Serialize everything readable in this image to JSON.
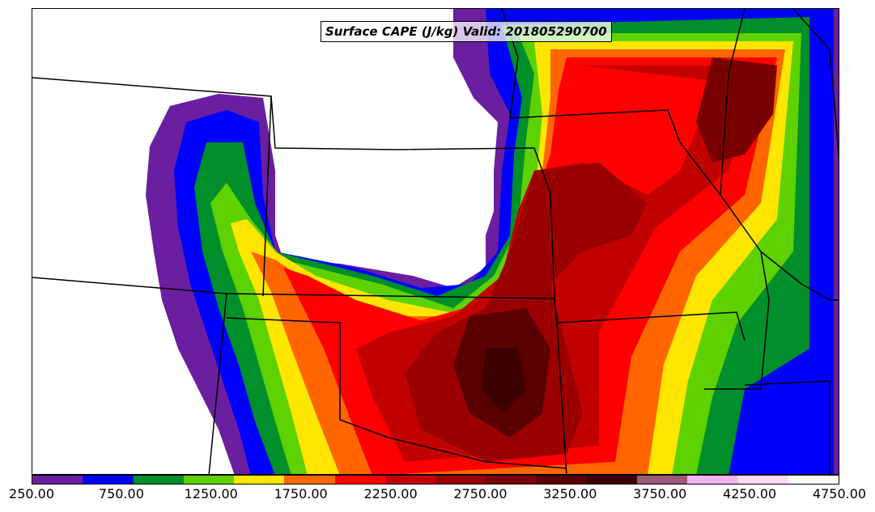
{
  "title": "Surface CAPE (J/kg) Valid: 201805290700",
  "colorbar": {
    "colors": [
      "#6a1fa0",
      "#0000ff",
      "#008f2a",
      "#5ed100",
      "#ffe600",
      "#ff6600",
      "#ff0000",
      "#c30000",
      "#9a0000",
      "#7a0000",
      "#5a0000",
      "#3c0000",
      "#9b5a78",
      "#f0b4f0",
      "#ffdcff",
      "#ffffff"
    ],
    "tick_labels": [
      "250.00",
      "750.00",
      "1250.00",
      "1750.00",
      "2250.00",
      "2750.00",
      "3250.00",
      "3750.00",
      "4250.00",
      "4750.00"
    ]
  }
}
